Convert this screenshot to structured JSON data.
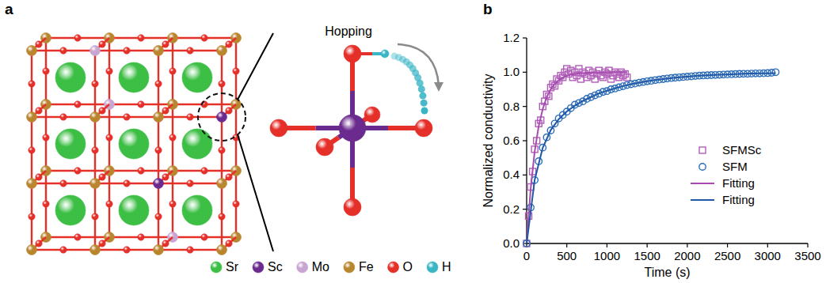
{
  "panel_labels": [
    "a",
    "b"
  ],
  "structure": {
    "annotation": "Hopping",
    "legend": [
      {
        "label": "Sr",
        "color": "#3dbf46"
      },
      {
        "label": "Sc",
        "color": "#6b2a8e"
      },
      {
        "label": "Mo",
        "color": "#c9a6d2"
      },
      {
        "label": "Fe",
        "color": "#b8862e"
      },
      {
        "label": "O",
        "color": "#e5302a"
      },
      {
        "label": "H",
        "color": "#3ab5c6"
      }
    ]
  },
  "chart_data": {
    "type": "scatter",
    "xlabel": "Time (s)",
    "ylabel": "Normalized conductivity",
    "xlim": [
      0,
      3500
    ],
    "ylim": [
      0,
      1.2
    ],
    "xticks": [
      0,
      500,
      1000,
      1500,
      2000,
      2500,
      3000,
      3500
    ],
    "yticks": [
      {
        "value": 0,
        "label": "0.0"
      },
      0.2,
      0.4,
      0.6,
      0.8,
      {
        "value": 1,
        "label": "1.0"
      },
      1.2
    ],
    "grid": false,
    "legend": "right",
    "series": [
      {
        "name": "SFMSc",
        "type": "scatter",
        "marker": "square",
        "color": "#b05db8",
        "x": [
          0,
          25,
          50,
          75,
          100,
          125,
          150,
          175,
          200,
          225,
          250,
          275,
          300,
          325,
          350,
          375,
          400,
          425,
          450,
          475,
          500,
          525,
          550,
          575,
          600,
          625,
          650,
          675,
          700,
          725,
          750,
          775,
          800,
          825,
          850,
          875,
          900,
          925,
          950,
          975,
          1000,
          1025,
          1050,
          1075,
          1100,
          1125,
          1150,
          1175,
          1200,
          1225,
          1250
        ],
        "values": [
          0,
          0.16,
          0.33,
          0.42,
          0.55,
          0.6,
          0.7,
          0.72,
          0.8,
          0.83,
          0.87,
          0.86,
          0.91,
          0.93,
          0.92,
          0.96,
          0.95,
          0.98,
          0.97,
          1.0,
          1.02,
          0.99,
          1.01,
          0.97,
          1.0,
          0.98,
          1.02,
          0.96,
          1.0,
          0.99,
          0.97,
          1.01,
          0.98,
          1.0,
          0.96,
          0.99,
          1.01,
          0.98,
          0.97,
          1.0,
          0.99,
          1.01,
          0.96,
          0.98,
          1.0,
          0.99,
          0.97,
          1.0,
          0.98,
          0.99,
          0.97
        ]
      },
      {
        "name": "SFM",
        "type": "scatter",
        "marker": "circle",
        "color": "#2b6cb8",
        "x": [
          0,
          50,
          100,
          150,
          200,
          250,
          300,
          350,
          400,
          450,
          500,
          550,
          600,
          650,
          700,
          750,
          800,
          850,
          900,
          950,
          1000,
          1050,
          1100,
          1150,
          1200,
          1250,
          1300,
          1350,
          1400,
          1450,
          1500,
          1550,
          1600,
          1650,
          1700,
          1750,
          1800,
          1850,
          1900,
          1950,
          2000,
          2050,
          2100,
          2150,
          2200,
          2250,
          2300,
          2350,
          2400,
          2450,
          2500,
          2550,
          2600,
          2650,
          2700,
          2750,
          2800,
          2850,
          2900,
          2950,
          3000,
          3050,
          3100
        ],
        "values": [
          0,
          0.21,
          0.37,
          0.48,
          0.56,
          0.62,
          0.66,
          0.7,
          0.73,
          0.75,
          0.77,
          0.79,
          0.81,
          0.82,
          0.83,
          0.845,
          0.855,
          0.865,
          0.875,
          0.885,
          0.89,
          0.9,
          0.905,
          0.912,
          0.918,
          0.925,
          0.93,
          0.934,
          0.939,
          0.943,
          0.947,
          0.95,
          0.954,
          0.957,
          0.96,
          0.963,
          0.966,
          0.968,
          0.97,
          0.972,
          0.974,
          0.976,
          0.978,
          0.98,
          0.981,
          0.982,
          0.983,
          0.984,
          0.985,
          0.986,
          0.987,
          0.988,
          0.989,
          0.99,
          0.991,
          0.991,
          0.992,
          0.993,
          0.993,
          0.994,
          0.995,
          0.997,
          1.0
        ]
      },
      {
        "name": "Fitting",
        "type": "line",
        "line_style": "solid",
        "color": "#a64cae",
        "x": [
          0,
          50,
          100,
          150,
          200,
          250,
          300,
          350,
          400,
          450,
          500,
          550,
          600,
          650,
          700,
          750,
          800,
          850,
          900,
          950,
          1000,
          1050,
          1100,
          1150,
          1200,
          1250
        ],
        "values": [
          0,
          0.319,
          0.537,
          0.685,
          0.785,
          0.854,
          0.901,
          0.932,
          0.954,
          0.969,
          0.979,
          0.986,
          0.99,
          0.993,
          0.995,
          0.997,
          0.998,
          0.998,
          0.999,
          0.999,
          0.999,
          1.0,
          1.0,
          1.0,
          1.0,
          1.0
        ]
      },
      {
        "name": "Fitting",
        "type": "line",
        "line_style": "solid",
        "color": "#1f58a6",
        "x": [
          0,
          100,
          200,
          300,
          400,
          500,
          600,
          700,
          800,
          900,
          1000,
          1100,
          1200,
          1300,
          1400,
          1500,
          1600,
          1700,
          1800,
          1900,
          2000,
          2100,
          2200,
          2300,
          2400,
          2500,
          2600,
          2700,
          2800,
          2900,
          3000,
          3100
        ],
        "values": [
          0,
          0.371,
          0.558,
          0.662,
          0.726,
          0.771,
          0.805,
          0.832,
          0.855,
          0.876,
          0.892,
          0.906,
          0.919,
          0.93,
          0.939,
          0.947,
          0.954,
          0.96,
          0.966,
          0.97,
          0.974,
          0.978,
          0.981,
          0.983,
          0.985,
          0.987,
          0.989,
          0.991,
          0.992,
          0.993,
          0.994,
          0.995
        ]
      }
    ]
  }
}
